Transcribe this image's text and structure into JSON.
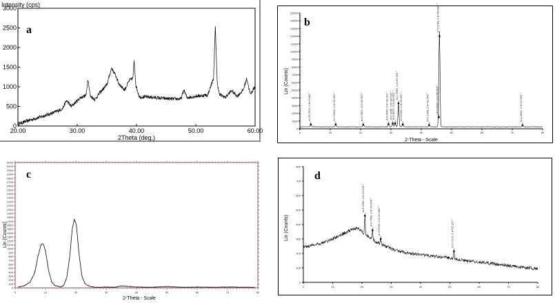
{
  "chart_data": [
    {
      "panel": "a",
      "type": "line",
      "ylabel": "Intensity (cps)",
      "xlabel": "2Theta (deg.)",
      "xlim": [
        20,
        60
      ],
      "ylim": [
        0,
        3000
      ],
      "xticks": [
        "20.00",
        "30.00",
        "40.00",
        "50.00",
        "60.00"
      ],
      "yticks": [
        "0",
        "500",
        "1000",
        "1500",
        "2000",
        "2500",
        "3000"
      ],
      "series": [
        {
          "x": [
            20,
            22,
            24,
            26,
            27.5,
            28.2,
            29,
            30.5,
            31.5,
            31.8,
            32.2,
            33,
            34,
            35,
            35.8,
            36.5,
            37,
            38,
            38.8,
            39.4,
            39.6,
            39.9,
            40.5,
            42,
            44,
            46,
            47.5,
            48,
            48.5,
            50,
            52,
            53,
            53.3,
            53.6,
            54,
            55,
            56,
            57,
            58,
            58.6,
            59.2,
            60
          ],
          "y": [
            50,
            150,
            240,
            340,
            440,
            650,
            500,
            720,
            780,
            1230,
            760,
            680,
            880,
            1050,
            1480,
            1280,
            1080,
            920,
            1160,
            1220,
            1680,
            1020,
            740,
            740,
            710,
            690,
            690,
            920,
            720,
            760,
            790,
            1220,
            2550,
            1120,
            800,
            730,
            900,
            760,
            920,
            1220,
            800,
            1020
          ]
        }
      ]
    },
    {
      "panel": "b",
      "type": "line",
      "ylabel": "Lin (Counts)",
      "xlabel": "2-Theta - Scale",
      "xlim": [
        0,
        80
      ],
      "ylim": [
        0,
        15000
      ],
      "yticks": [
        "0",
        "1000",
        "2000",
        "3000",
        "4000",
        "5000",
        "6000",
        "7000",
        "8000",
        "9000",
        "10000",
        "11000",
        "12000",
        "13000",
        "14000",
        "15000"
      ],
      "xticks": [
        "0",
        "10",
        "20",
        "30",
        "40",
        "50",
        "60",
        "70",
        "80"
      ],
      "peaks": [
        {
          "x": 3.6,
          "y": 550,
          "label": "d=24.7621, 2-θ=3.565 °"
        },
        {
          "x": 11.8,
          "y": 560,
          "label": "d=7.5832, 2-θ=11.662 °"
        },
        {
          "x": 20.9,
          "y": 520,
          "label": "d=4.2453, 2-θ=20.907 °"
        },
        {
          "x": 29.2,
          "y": 600,
          "label": "d=3.0549, 2-θ=29.212 °"
        },
        {
          "x": 30.6,
          "y": 680,
          "label": "d=2.9195, 2-θ=30.596 °"
        },
        {
          "x": 31.4,
          "y": 700,
          "label": "d=2.8472, 2-θ=31.393 °"
        },
        {
          "x": 32.5,
          "y": 3300,
          "label": "d=2.7546, 2-θ=32.478 °"
        },
        {
          "x": 33.9,
          "y": 560,
          "label": "d=2.6381, 2-θ=33.952 °"
        },
        {
          "x": 42.6,
          "y": 480,
          "label": "d=2.1206, 2-θ=42.594 °"
        },
        {
          "x": 45.8,
          "y": 1500,
          "label": "d=1.9792, 2-θ=45.814 °"
        },
        {
          "x": 46.0,
          "y": 12000,
          "label": "d=1.9700, 2-θ=46.038 °"
        },
        {
          "x": 73.4,
          "y": 450,
          "label": "d=1.2891, 2-θ=73.391 °"
        }
      ]
    },
    {
      "panel": "c",
      "type": "line",
      "ylabel": "Lin (Counts)",
      "xlabel": "2-Theta - Scale",
      "xlim": [
        0,
        80
      ],
      "ylim": [
        0,
        3200
      ],
      "yticks": [
        "0",
        "100",
        "200",
        "300",
        "400",
        "500",
        "600",
        "700",
        "800",
        "900",
        "1000",
        "1100",
        "1200",
        "1300",
        "1400",
        "1500",
        "1600",
        "1700",
        "1800",
        "1900",
        "2000",
        "2100",
        "2200",
        "2300",
        "2400",
        "2500",
        "2600",
        "2700",
        "2800",
        "2900",
        "3000",
        "3100",
        "3200"
      ],
      "xticks": [
        "0",
        "10",
        "20",
        "30",
        "40",
        "50",
        "60",
        "70",
        "80"
      ],
      "series": [
        {
          "x": [
            1,
            3,
            5,
            6.5,
            7.5,
            8.5,
            9.2,
            10,
            11,
            12,
            13,
            15,
            16,
            17,
            18,
            18.8,
            19.5,
            20.2,
            21,
            22,
            23,
            24,
            25,
            26,
            28,
            30,
            33,
            35,
            40,
            45,
            50,
            55,
            60,
            65,
            70,
            75,
            79
          ],
          "y": [
            20,
            50,
            150,
            400,
            800,
            1100,
            1130,
            950,
            450,
            160,
            60,
            25,
            60,
            260,
            800,
            1500,
            1750,
            1600,
            900,
            300,
            110,
            60,
            30,
            20,
            15,
            20,
            15,
            50,
            20,
            15,
            30,
            15,
            20,
            15,
            20,
            15,
            15
          ]
        }
      ]
    },
    {
      "panel": "d",
      "type": "line",
      "ylabel": "Lin (Counts)",
      "xlabel": "",
      "xlim": [
        0,
        80
      ],
      "ylim": [
        0,
        800
      ],
      "yticks": [
        "0",
        "100",
        "200",
        "300",
        "400",
        "500",
        "600",
        "700",
        "800"
      ],
      "xticks": [
        "0",
        "10",
        "20",
        "30",
        "40",
        "50",
        "60",
        "70",
        "80"
      ],
      "peaks": [
        {
          "x": 21.0,
          "y": 460,
          "label": "d=4.2256, 2-θ=21.011 °"
        },
        {
          "x": 23.6,
          "y": 360,
          "label": "d=3.7690, 2-θ=23.593 °"
        },
        {
          "x": 26.4,
          "y": 300,
          "label": "d=3.3733, 2-θ=26.404 °"
        },
        {
          "x": 51.4,
          "y": 215,
          "label": "d=1.7773, 2-θ=51.372 °"
        }
      ],
      "series": [
        {
          "x": [
            0,
            3,
            6,
            10,
            14,
            17,
            18.5,
            20,
            21,
            22,
            23.6,
            24.5,
            26.4,
            28,
            31,
            35,
            40,
            45,
            50,
            51.4,
            52,
            55,
            60,
            65,
            70,
            75,
            79
          ],
          "y": [
            245,
            255,
            270,
            300,
            340,
            370,
            375,
            350,
            330,
            320,
            300,
            280,
            265,
            250,
            225,
            205,
            190,
            178,
            168,
            160,
            160,
            152,
            140,
            128,
            115,
            102,
            95
          ]
        }
      ]
    }
  ],
  "panel_labels": [
    "a",
    "b",
    "c",
    "d"
  ]
}
